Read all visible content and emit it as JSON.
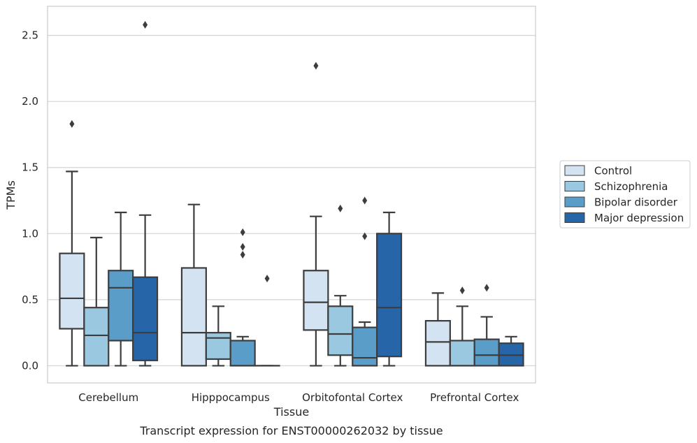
{
  "chart_data": {
    "type": "box",
    "xlabel": "Tissue",
    "ylabel": "TPMs",
    "caption": "Transcript expression for ENST00000262032 by tissue",
    "ylim": [
      -0.13,
      2.72
    ],
    "yticks": [
      0.0,
      0.5,
      1.0,
      1.5,
      2.0,
      2.5
    ],
    "ytick_labels": [
      "0.0",
      "0.5",
      "1.0",
      "1.5",
      "2.0",
      "2.5"
    ],
    "grid": "horizontal",
    "legend_position": "right",
    "categories": [
      "Cerebellum",
      "Hipppocampus",
      "Orbitofontal Cortex",
      "Prefrontal Cortex"
    ],
    "series": [
      {
        "name": "Control",
        "color": "#d3e3f2",
        "boxes": [
          {
            "whislo": 0.0,
            "q1": 0.28,
            "med": 0.51,
            "q3": 0.85,
            "whishi": 1.47,
            "fliers": [
              1.83
            ]
          },
          {
            "whislo": 0.0,
            "q1": 0.0,
            "med": 0.25,
            "q3": 0.74,
            "whishi": 1.22,
            "fliers": []
          },
          {
            "whislo": 0.0,
            "q1": 0.27,
            "med": 0.48,
            "q3": 0.72,
            "whishi": 1.13,
            "fliers": [
              2.27
            ]
          },
          {
            "whislo": 0.0,
            "q1": 0.0,
            "med": 0.18,
            "q3": 0.34,
            "whishi": 0.55,
            "fliers": []
          }
        ]
      },
      {
        "name": "Schizophrenia",
        "color": "#9ac8e0",
        "boxes": [
          {
            "whislo": 0.0,
            "q1": 0.0,
            "med": 0.23,
            "q3": 0.44,
            "whishi": 0.97,
            "fliers": []
          },
          {
            "whislo": 0.0,
            "q1": 0.05,
            "med": 0.21,
            "q3": 0.25,
            "whishi": 0.45,
            "fliers": []
          },
          {
            "whislo": 0.0,
            "q1": 0.08,
            "med": 0.24,
            "q3": 0.45,
            "whishi": 0.53,
            "fliers": [
              1.19
            ]
          },
          {
            "whislo": 0.0,
            "q1": 0.0,
            "med": 0.0,
            "q3": 0.19,
            "whishi": 0.45,
            "fliers": [
              0.57
            ]
          }
        ]
      },
      {
        "name": "Bipolar disorder",
        "color": "#5a9dc9",
        "boxes": [
          {
            "whislo": 0.0,
            "q1": 0.19,
            "med": 0.59,
            "q3": 0.72,
            "whishi": 1.16,
            "fliers": []
          },
          {
            "whislo": 0.0,
            "q1": 0.0,
            "med": 0.0,
            "q3": 0.19,
            "whishi": 0.22,
            "fliers": [
              0.84,
              0.9,
              1.01
            ]
          },
          {
            "whislo": 0.0,
            "q1": 0.0,
            "med": 0.06,
            "q3": 0.29,
            "whishi": 0.33,
            "fliers": [
              0.98,
              1.25
            ]
          },
          {
            "whislo": 0.0,
            "q1": 0.0,
            "med": 0.08,
            "q3": 0.2,
            "whishi": 0.37,
            "fliers": [
              0.59
            ]
          }
        ]
      },
      {
        "name": "Major depression",
        "color": "#2666a8",
        "boxes": [
          {
            "whislo": 0.0,
            "q1": 0.04,
            "med": 0.25,
            "q3": 0.67,
            "whishi": 1.14,
            "fliers": [
              2.58
            ]
          },
          {
            "whislo": 0.0,
            "q1": 0.0,
            "med": 0.0,
            "q3": 0.0,
            "whishi": 0.0,
            "fliers": [
              0.66
            ]
          },
          {
            "whislo": 0.0,
            "q1": 0.07,
            "med": 0.44,
            "q3": 1.0,
            "whishi": 1.16,
            "fliers": []
          },
          {
            "whislo": 0.0,
            "q1": 0.0,
            "med": 0.08,
            "q3": 0.17,
            "whishi": 0.22,
            "fliers": []
          }
        ]
      }
    ],
    "colors": {
      "line": "#3d3d3d",
      "grid": "#d4d4d4",
      "frame": "#cccccc"
    }
  }
}
